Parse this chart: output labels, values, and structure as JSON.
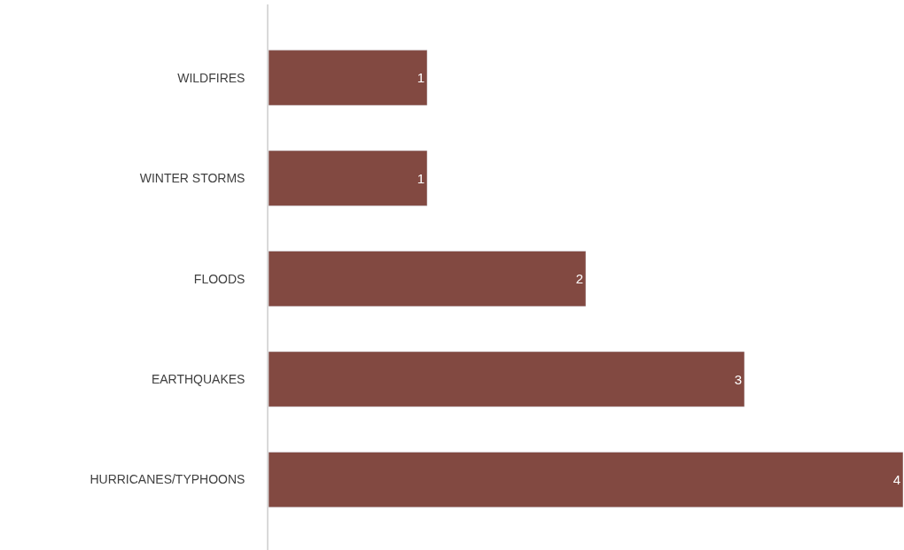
{
  "chart_data": {
    "type": "bar",
    "orientation": "horizontal",
    "categories": [
      "WILDFIRES",
      "WINTER STORMS",
      "FLOODS",
      "EARTHQUAKES",
      "HURRICANES/TYPHOONS"
    ],
    "values": [
      1,
      1,
      2,
      3,
      4
    ],
    "color": "#824941",
    "xlim": [
      0,
      4
    ],
    "data_labels": true,
    "tick_labels": "y"
  }
}
